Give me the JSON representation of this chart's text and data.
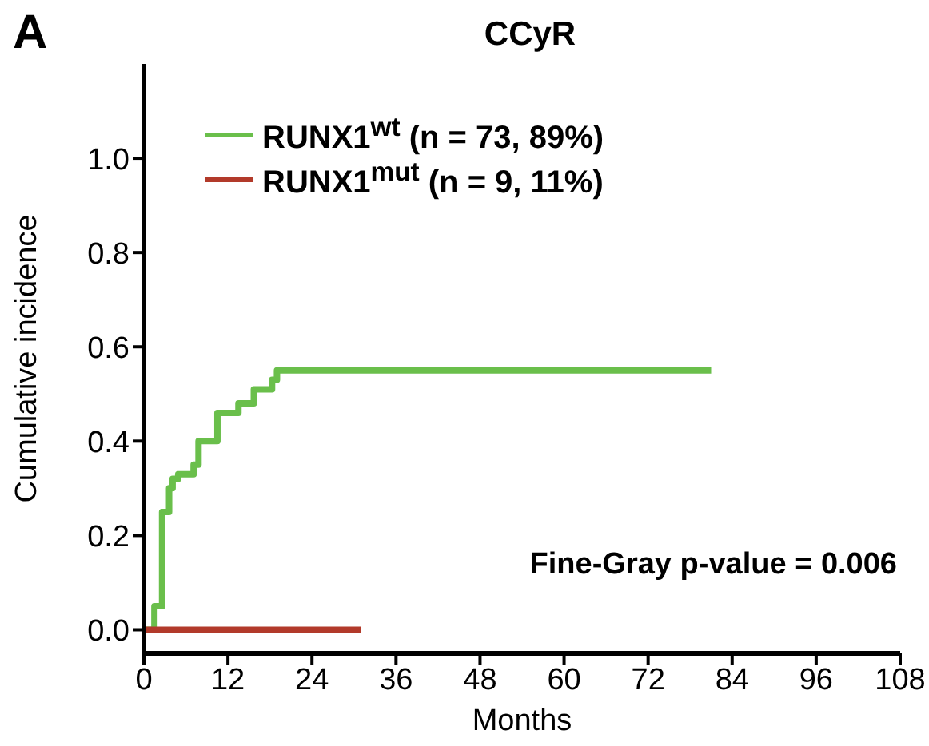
{
  "chart_data": {
    "type": "step",
    "title": "CCyR",
    "xlabel": "Months",
    "ylabel": "Cumulative incidence",
    "annotations": [
      "A",
      "Fine-Gray p-value = 0.006"
    ],
    "series": [
      {
        "name": "RUNX1$^{wt}$ (n = 73, 89%)",
        "color": "#6abf4b",
        "x": [
          0,
          1.5,
          2.6,
          3.6,
          4.1,
          4.9,
          7.1,
          7.8,
          10.5,
          13.5,
          15.7,
          18.3,
          19,
          81
        ],
        "values": [
          0,
          0.05,
          0.25,
          0.3,
          0.32,
          0.33,
          0.35,
          0.4,
          0.46,
          0.48,
          0.51,
          0.53,
          0.55,
          0.55
        ]
      },
      {
        "name": "RUNX1$^{mut}$ (n = 9, 11%)",
        "color": "#b23a2a",
        "x": [
          0,
          31
        ],
        "values": [
          0,
          0
        ]
      }
    ],
    "xlim": [
      0,
      108
    ],
    "xticks": [
      0,
      12,
      24,
      36,
      48,
      60,
      72,
      84,
      96,
      108
    ],
    "ylim": [
      -0.05,
      1.2
    ],
    "yticks": [
      {
        "value": 0,
        "label": "0.0"
      },
      {
        "value": 0.2,
        "label": "0.2"
      },
      {
        "value": 0.4,
        "label": "0.4"
      },
      {
        "value": 0.6,
        "label": "0.6"
      },
      {
        "value": 0.8,
        "label": "0.8"
      },
      {
        "value": 1,
        "label": "1.0"
      }
    ],
    "grid": false,
    "legend": "top left",
    "marker": "none",
    "line_style": "solid"
  }
}
